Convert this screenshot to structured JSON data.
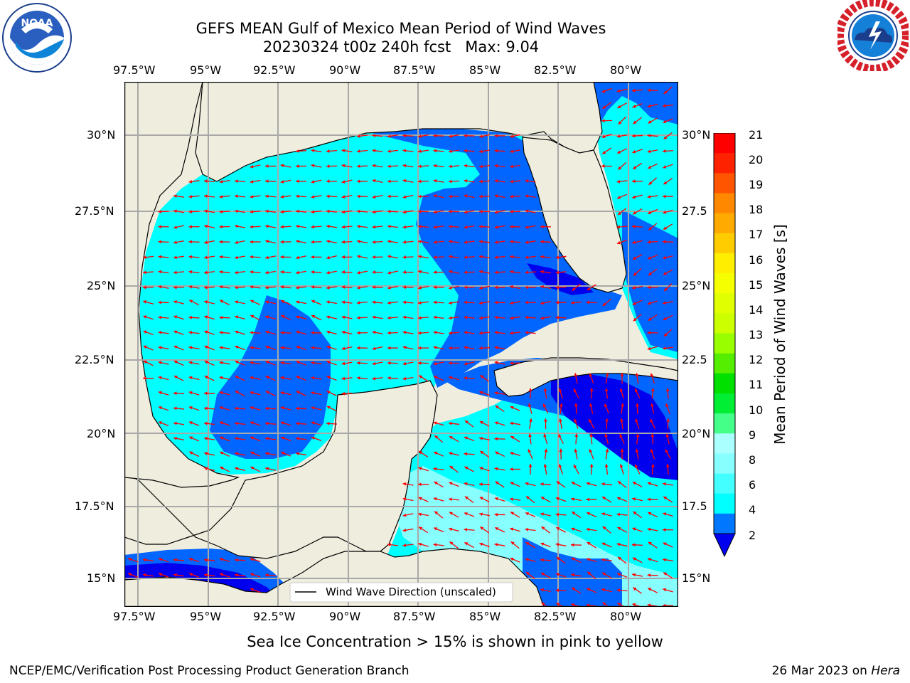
{
  "header": {
    "title_line1": "GEFS MEAN Gulf of Mexico Mean Period of Wind Waves",
    "title_line2": "20230324 t00z 240h fcst   Max: 9.04"
  },
  "logos": {
    "left": {
      "name": "NOAA",
      "ring_text": "NATIONAL OCEANIC AND ATMOSPHERIC ADMINISTRATION · U.S. DEPARTMENT OF COMMERCE"
    },
    "right": {
      "name": "National Weather Service",
      "ring_text": "NATIONAL WEATHER SERVICE"
    }
  },
  "map": {
    "lon_labels": [
      "97.5°W",
      "95°W",
      "92.5°W",
      "90°W",
      "87.5°W",
      "85°W",
      "82.5°W",
      "80°W"
    ],
    "lat_labels_left": [
      "30°N",
      "27.5°N",
      "25°N",
      "22.5°N",
      "20°N",
      "17.5°N",
      "15°N"
    ],
    "lat_labels_right": [
      "30°N",
      "27.5",
      "25°N",
      "22.5",
      "20°N",
      "17.5",
      "15°N"
    ],
    "legend_label": "Wind Wave Direction (unscaled)",
    "colors": {
      "land": "#efedde",
      "ocean_2_4": "#0066ff",
      "ocean_4_6": "#00ffff",
      "ocean_6_8": "#44ffff",
      "ocean_low": "#0000ee",
      "arrow": "#ff0000",
      "grid": "#a8a8a8"
    }
  },
  "colorbar": {
    "title": "Mean Period of Wind Waves [s]",
    "ticks": [
      "21",
      "20",
      "19",
      "18",
      "17",
      "16",
      "15",
      "14",
      "13",
      "12",
      "11",
      "10",
      "9",
      "8",
      "6",
      "4",
      "2"
    ],
    "colors": [
      "#ff0000",
      "#ff2200",
      "#ff5500",
      "#ff8800",
      "#ffaa00",
      "#ffcc00",
      "#ffee00",
      "#f5ff00",
      "#e0ff00",
      "#ccff00",
      "#99ff00",
      "#55ee00",
      "#00e000",
      "#00ee33",
      "#44ff88",
      "#aaffff",
      "#88ffff",
      "#44ffff",
      "#00ffff",
      "#0077ff"
    ],
    "under_color": "#0000ee"
  },
  "caption": "Sea Ice Concentration > 15% is shown in pink to yellow",
  "footer": {
    "left": "NCEP/EMC/Verification Post Processing Product Generation Branch",
    "right_date": "26 Mar 2023 on ",
    "right_machine": "Hera"
  }
}
